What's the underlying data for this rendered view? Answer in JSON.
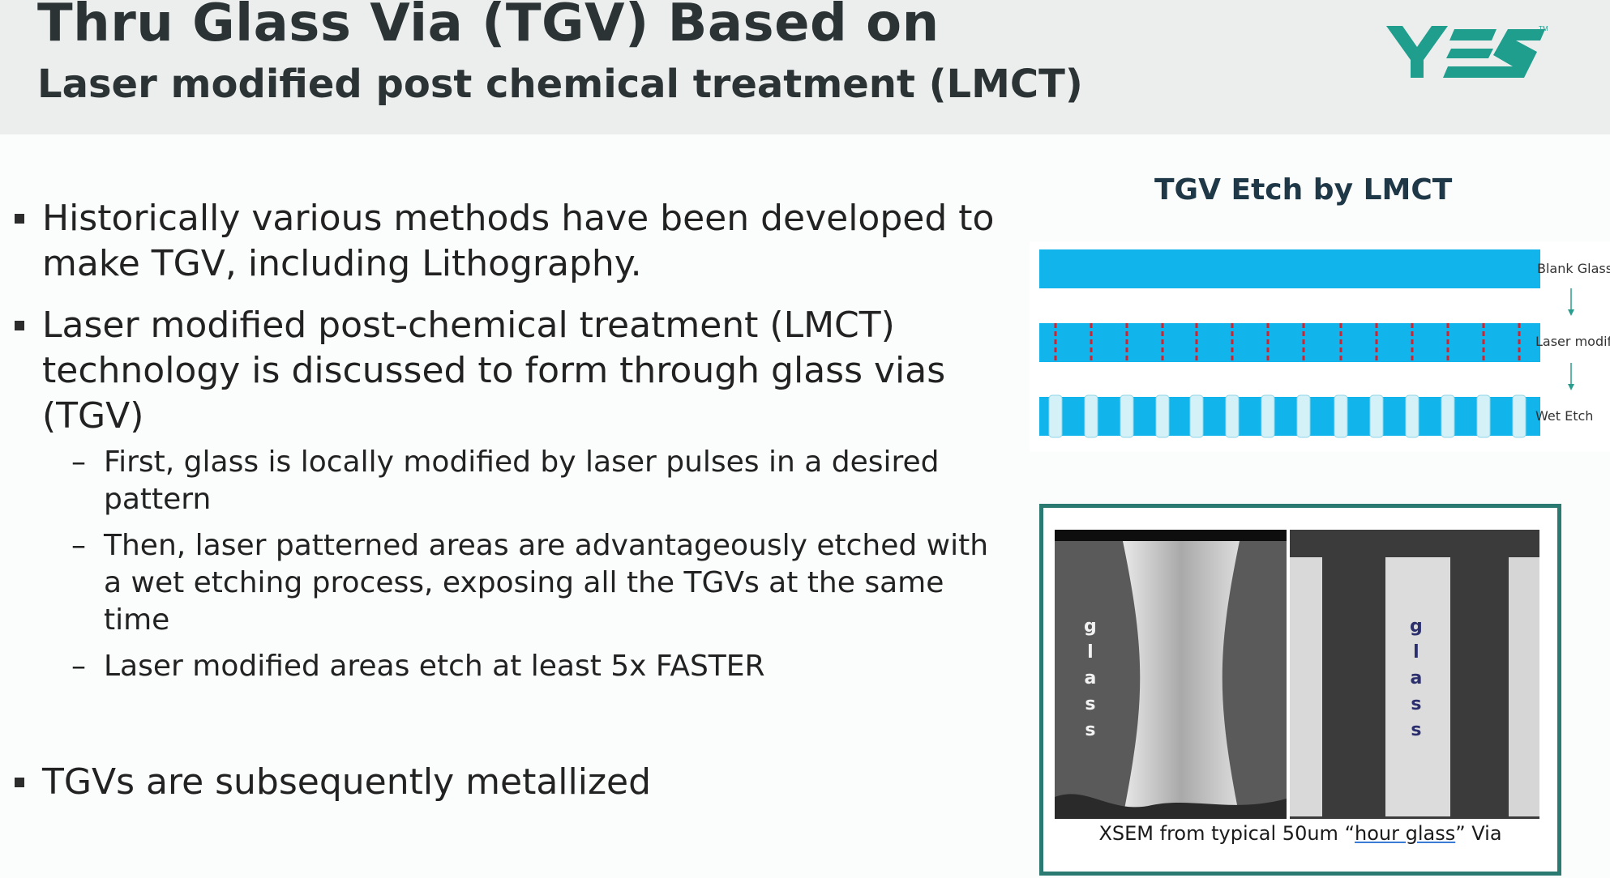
{
  "header": {
    "title_line1": "Thru Glass Via (TGV) Based on",
    "title_line2": "Laser modified post chemical treatment (LMCT)",
    "logo_text": "YES",
    "logo_color": "#1f9e8e"
  },
  "bullets": [
    {
      "text": "Historically various methods have been developed to make TGV, including Lithography."
    },
    {
      "text": "Laser modified post-chemical treatment (LMCT) technology is discussed to form through glass vias (TGV)",
      "sub": [
        "First, glass is locally modified by laser pulses in a desired pattern",
        "Then, laser patterned areas are advantageously etched with a wet etching process, exposing all the TGVs at the same time",
        "Laser modified areas etch at least 5x FASTER"
      ]
    },
    {
      "text": "TGVs are subsequently metallized"
    }
  ],
  "diagram": {
    "title": "TGV Etch by LMCT",
    "steps": [
      "Blank Glass",
      "Laser modify",
      "Wet Etch"
    ],
    "glass_color": "#12b4ec",
    "laser_color": "#d8202a",
    "arrow_color": "#2a9d8f"
  },
  "sem": {
    "caption_prefix": "XSEM from typical 50um “",
    "caption_underlined": "hour glass",
    "caption_suffix": "” Via",
    "left_letters": [
      "g",
      "l",
      "a",
      "s",
      "s"
    ],
    "right_letters": [
      "g",
      "l",
      "a",
      "s",
      "s"
    ],
    "frame_color": "#2a7a72"
  }
}
